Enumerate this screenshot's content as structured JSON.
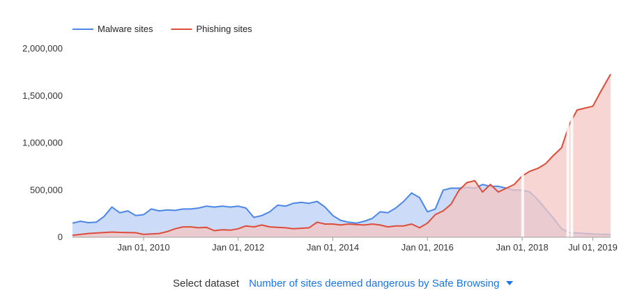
{
  "chart_data": {
    "type": "area",
    "title": "",
    "xlabel": "",
    "ylabel": "",
    "ylim": [
      0,
      2000000
    ],
    "xlim": [
      "2008-07-01",
      "2019-11-15"
    ],
    "yticks": [
      {
        "value": 0,
        "label": "0"
      },
      {
        "value": 500000,
        "label": "500,000"
      },
      {
        "value": 1000000,
        "label": "1,000,000"
      },
      {
        "value": 1500000,
        "label": "1,500,000"
      },
      {
        "value": 2000000,
        "label": "2,000,000"
      }
    ],
    "xticks": [
      {
        "value": "2010-01-01",
        "label": "Jan 01, 2010"
      },
      {
        "value": "2012-01-01",
        "label": "Jan 01, 2012"
      },
      {
        "value": "2014-01-01",
        "label": "Jan 01, 2014"
      },
      {
        "value": "2016-01-01",
        "label": "Jan 01, 2016"
      },
      {
        "value": "2018-01-01",
        "label": "Jan 01, 2018"
      },
      {
        "value": "2019-07-01",
        "label": "Jul 01, 2019"
      }
    ],
    "grid": false,
    "legend": "top-left",
    "series": [
      {
        "name": "Malware sites",
        "color": "#4a86e8",
        "fill": "#c9daf8",
        "points": [
          [
            "2008-07-01",
            150000
          ],
          [
            "2008-09-01",
            170000
          ],
          [
            "2008-11-01",
            155000
          ],
          [
            "2009-01-01",
            160000
          ],
          [
            "2009-03-01",
            220000
          ],
          [
            "2009-05-01",
            320000
          ],
          [
            "2009-07-01",
            260000
          ],
          [
            "2009-09-01",
            280000
          ],
          [
            "2009-11-01",
            230000
          ],
          [
            "2010-01-01",
            240000
          ],
          [
            "2010-03-01",
            300000
          ],
          [
            "2010-05-01",
            280000
          ],
          [
            "2010-07-01",
            290000
          ],
          [
            "2010-09-01",
            285000
          ],
          [
            "2010-11-01",
            300000
          ],
          [
            "2011-01-01",
            300000
          ],
          [
            "2011-03-01",
            310000
          ],
          [
            "2011-05-01",
            330000
          ],
          [
            "2011-07-01",
            320000
          ],
          [
            "2011-09-01",
            330000
          ],
          [
            "2011-11-01",
            320000
          ],
          [
            "2012-01-01",
            330000
          ],
          [
            "2012-03-01",
            310000
          ],
          [
            "2012-05-01",
            210000
          ],
          [
            "2012-07-01",
            230000
          ],
          [
            "2012-09-01",
            270000
          ],
          [
            "2012-11-01",
            340000
          ],
          [
            "2013-01-01",
            330000
          ],
          [
            "2013-03-01",
            360000
          ],
          [
            "2013-05-01",
            370000
          ],
          [
            "2013-07-01",
            360000
          ],
          [
            "2013-09-01",
            380000
          ],
          [
            "2013-11-01",
            320000
          ],
          [
            "2014-01-01",
            230000
          ],
          [
            "2014-03-01",
            180000
          ],
          [
            "2014-05-01",
            160000
          ],
          [
            "2014-07-01",
            150000
          ],
          [
            "2014-09-01",
            170000
          ],
          [
            "2014-11-01",
            200000
          ],
          [
            "2015-01-01",
            270000
          ],
          [
            "2015-03-01",
            260000
          ],
          [
            "2015-05-01",
            310000
          ],
          [
            "2015-07-01",
            380000
          ],
          [
            "2015-09-01",
            470000
          ],
          [
            "2015-11-01",
            420000
          ],
          [
            "2016-01-01",
            270000
          ],
          [
            "2016-03-01",
            300000
          ],
          [
            "2016-05-01",
            500000
          ],
          [
            "2016-07-01",
            520000
          ],
          [
            "2016-09-01",
            520000
          ],
          [
            "2016-11-01",
            530000
          ],
          [
            "2017-01-01",
            520000
          ],
          [
            "2017-03-01",
            560000
          ],
          [
            "2017-05-01",
            540000
          ],
          [
            "2017-07-01",
            540000
          ],
          [
            "2017-09-01",
            520000
          ],
          [
            "2017-11-01",
            500000
          ],
          [
            "2018-01-01",
            500000
          ],
          [
            "2018-03-01",
            480000
          ],
          [
            "2018-05-01",
            400000
          ],
          [
            "2018-07-01",
            300000
          ],
          [
            "2018-09-01",
            200000
          ],
          [
            "2018-11-01",
            90000
          ],
          [
            "2019-01-01",
            50000
          ],
          [
            "2019-03-01",
            45000
          ],
          [
            "2019-05-01",
            40000
          ],
          [
            "2019-07-01",
            35000
          ],
          [
            "2019-09-01",
            30000
          ],
          [
            "2019-11-15",
            30000
          ]
        ]
      },
      {
        "name": "Phishing sites",
        "color": "#dd4b39",
        "fill": "#f4c7c3",
        "points": [
          [
            "2008-07-01",
            20000
          ],
          [
            "2008-09-01",
            30000
          ],
          [
            "2008-11-01",
            40000
          ],
          [
            "2009-01-01",
            45000
          ],
          [
            "2009-03-01",
            50000
          ],
          [
            "2009-05-01",
            55000
          ],
          [
            "2009-07-01",
            52000
          ],
          [
            "2009-09-01",
            50000
          ],
          [
            "2009-11-01",
            48000
          ],
          [
            "2010-01-01",
            30000
          ],
          [
            "2010-03-01",
            35000
          ],
          [
            "2010-05-01",
            40000
          ],
          [
            "2010-07-01",
            60000
          ],
          [
            "2010-09-01",
            90000
          ],
          [
            "2010-11-01",
            110000
          ],
          [
            "2011-01-01",
            110000
          ],
          [
            "2011-03-01",
            100000
          ],
          [
            "2011-05-01",
            105000
          ],
          [
            "2011-07-01",
            70000
          ],
          [
            "2011-09-01",
            80000
          ],
          [
            "2011-11-01",
            75000
          ],
          [
            "2012-01-01",
            90000
          ],
          [
            "2012-03-01",
            120000
          ],
          [
            "2012-05-01",
            110000
          ],
          [
            "2012-07-01",
            130000
          ],
          [
            "2012-09-01",
            110000
          ],
          [
            "2012-11-01",
            105000
          ],
          [
            "2013-01-01",
            100000
          ],
          [
            "2013-03-01",
            90000
          ],
          [
            "2013-05-01",
            95000
          ],
          [
            "2013-07-01",
            100000
          ],
          [
            "2013-09-01",
            160000
          ],
          [
            "2013-11-01",
            140000
          ],
          [
            "2014-01-01",
            140000
          ],
          [
            "2014-03-01",
            130000
          ],
          [
            "2014-05-01",
            140000
          ],
          [
            "2014-07-01",
            135000
          ],
          [
            "2014-09-01",
            130000
          ],
          [
            "2014-11-01",
            140000
          ],
          [
            "2015-01-01",
            130000
          ],
          [
            "2015-03-01",
            110000
          ],
          [
            "2015-05-01",
            120000
          ],
          [
            "2015-07-01",
            120000
          ],
          [
            "2015-09-01",
            140000
          ],
          [
            "2015-11-01",
            100000
          ],
          [
            "2016-01-01",
            150000
          ],
          [
            "2016-03-01",
            240000
          ],
          [
            "2016-05-01",
            280000
          ],
          [
            "2016-07-01",
            350000
          ],
          [
            "2016-09-01",
            500000
          ],
          [
            "2016-11-01",
            580000
          ],
          [
            "2017-01-01",
            600000
          ],
          [
            "2017-03-01",
            480000
          ],
          [
            "2017-05-01",
            560000
          ],
          [
            "2017-07-01",
            480000
          ],
          [
            "2017-09-01",
            520000
          ],
          [
            "2017-11-01",
            560000
          ],
          [
            "2018-01-01",
            650000
          ],
          [
            "2018-03-01",
            700000
          ],
          [
            "2018-05-01",
            730000
          ],
          [
            "2018-07-01",
            780000
          ],
          [
            "2018-09-01",
            870000
          ],
          [
            "2018-11-01",
            950000
          ],
          [
            "2019-01-01",
            1200000
          ],
          [
            "2019-03-01",
            1350000
          ],
          [
            "2019-05-01",
            1370000
          ],
          [
            "2019-07-01",
            1390000
          ],
          [
            "2019-09-01",
            1550000
          ],
          [
            "2019-11-15",
            1730000
          ]
        ]
      }
    ],
    "gaps": [
      "2018-01-05",
      "2018-12-20",
      "2019-01-20"
    ]
  },
  "dataset_selector": {
    "label": "Select dataset",
    "value": "Number of sites deemed dangerous by Safe Browsing",
    "icon": "chevron-down-icon"
  }
}
